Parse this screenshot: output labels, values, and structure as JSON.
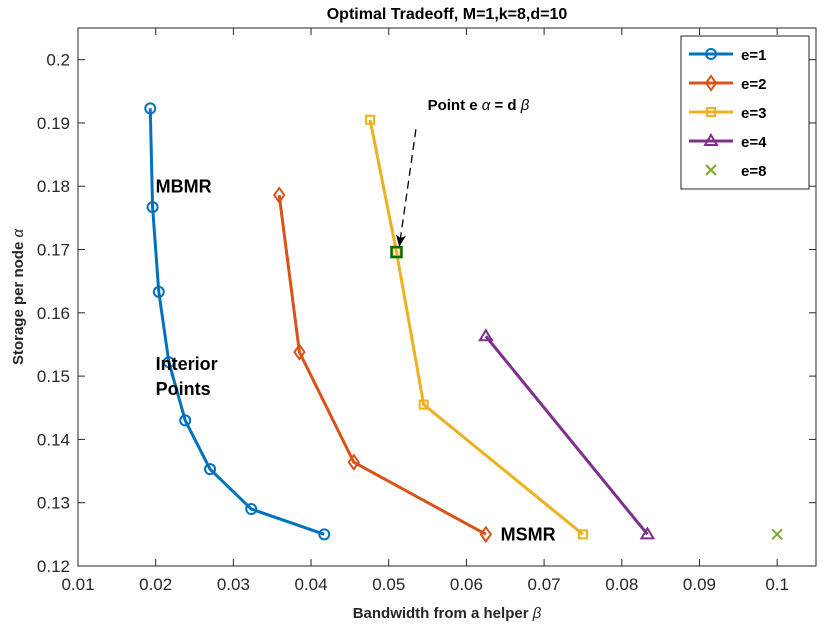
{
  "chart_data": {
    "type": "line",
    "title": "Optimal Tradeoff, M=1,k=8,d=10",
    "xlabel": "Bandwidth from a helper",
    "xlabel_symbol": "β",
    "ylabel": "Storage per node",
    "ylabel_symbol": "α",
    "xlim": [
      0.01,
      0.105
    ],
    "ylim": [
      0.12,
      0.205
    ],
    "xticks": [
      0.01,
      0.02,
      0.03,
      0.04,
      0.05,
      0.06,
      0.07,
      0.08,
      0.09,
      0.1
    ],
    "xtick_labels": [
      "0.01",
      "0.02",
      "0.03",
      "0.04",
      "0.05",
      "0.06",
      "0.07",
      "0.08",
      "0.09",
      "0.1"
    ],
    "yticks": [
      0.12,
      0.13,
      0.14,
      0.15,
      0.16,
      0.17,
      0.18,
      0.19,
      0.2
    ],
    "ytick_labels": [
      "0.12",
      "0.13",
      "0.14",
      "0.15",
      "0.16",
      "0.17",
      "0.18",
      "0.19",
      "0.2"
    ],
    "grid": false,
    "legend_position": "top-right",
    "series": [
      {
        "name": "e=1",
        "color": "#0072BD",
        "marker": "circle",
        "x": [
          0.0193,
          0.0196,
          0.0204,
          0.0217,
          0.0238,
          0.027,
          0.0323,
          0.0417
        ],
        "y": [
          0.1923,
          0.1767,
          0.1633,
          0.1522,
          0.143,
          0.1353,
          0.129,
          0.125
        ]
      },
      {
        "name": "e=2",
        "color": "#D95319",
        "marker": "diamond",
        "x": [
          0.0359,
          0.0385,
          0.0455,
          0.0625
        ],
        "y": [
          0.1786,
          0.1538,
          0.1364,
          0.125
        ]
      },
      {
        "name": "e=3",
        "color": "#EDB120",
        "marker": "square",
        "x": [
          0.0476,
          0.051,
          0.0545,
          0.075
        ],
        "y": [
          0.1905,
          0.1696,
          0.1455,
          0.125
        ]
      },
      {
        "name": "e=4",
        "color": "#7E2F8E",
        "marker": "triangle",
        "x": [
          0.0625,
          0.0833
        ],
        "y": [
          0.1563,
          0.125
        ]
      },
      {
        "name": "e=8",
        "color": "#77AC30",
        "marker": "x",
        "x": [
          0.1
        ],
        "y": [
          0.125
        ]
      }
    ],
    "highlight_point": {
      "x": 0.051,
      "y": 0.1696,
      "color": "#007000"
    },
    "annotations": [
      {
        "text": "MBMR",
        "x": 0.02,
        "y": 0.179
      },
      {
        "text": "Interior",
        "x": 0.02,
        "y": 0.151
      },
      {
        "text": "Points",
        "x": 0.02,
        "y": 0.147
      },
      {
        "text": "MSMR",
        "x": 0.0644,
        "y": 0.124
      },
      {
        "text": "Point e",
        "text_symbol_1": "α",
        "text_mid": "= d",
        "text_symbol_2": "β",
        "x": 0.055,
        "y": 0.1905,
        "arrow_to": [
          0.051,
          0.1696
        ]
      }
    ]
  }
}
